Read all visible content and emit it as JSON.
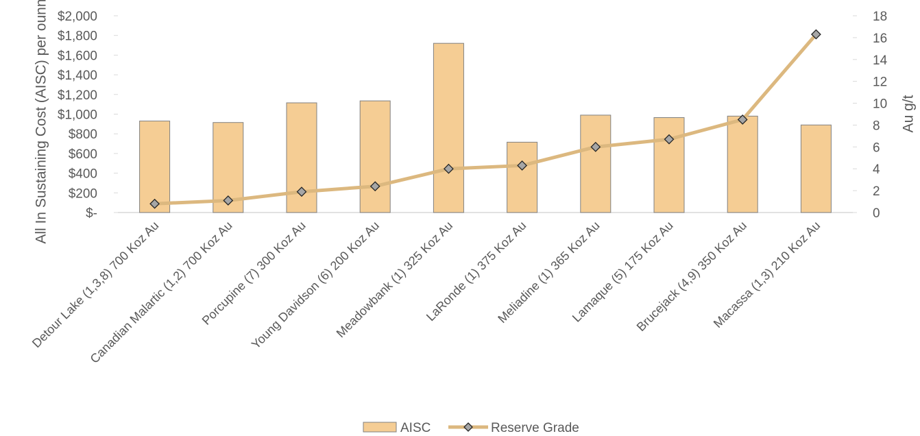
{
  "chart_data": {
    "type": "bar",
    "title": "",
    "categories": [
      "Detour Lake (1,3,8) 700 Koz Au",
      "Canadian Malartic (1,2) 700 Koz Au",
      "Porcupine (7) 300 Koz Au",
      "Young Davidson (6) 200 Koz Au",
      "Meadowbank (1) 325 Koz Au",
      "LaRonde  (1) 375 Koz Au",
      "Meliadine (1) 365 Koz Au",
      "Lamaque (5) 175 Koz Au",
      "Brucejack (4,9) 350 Koz Au",
      "Macassa (1,3) 210 Koz Au"
    ],
    "series": [
      {
        "name": "AISC",
        "type": "bar",
        "axis": "left",
        "color": "#f5cd94",
        "values": [
          930,
          915,
          1115,
          1135,
          1720,
          715,
          990,
          965,
          980,
          890
        ]
      },
      {
        "name": "Reserve Grade",
        "type": "line",
        "axis": "right",
        "color": "#dcb87f",
        "marker_color": "#a6a6a6",
        "values": [
          0.8,
          1.1,
          1.9,
          2.4,
          4.0,
          4.3,
          6.0,
          6.7,
          8.5,
          16.3
        ]
      }
    ],
    "ylabel": "All In Sustaining Cost (AISC) per ounnce",
    "y2label": "Au g/t",
    "ylim": [
      0,
      2000
    ],
    "y2lim": [
      0,
      18
    ],
    "yticks": [
      "$-",
      "$200",
      "$400",
      "$600",
      "$800",
      "$1,000",
      "$1,200",
      "$1,400",
      "$1,600",
      "$1,800",
      "$2,000"
    ],
    "y2ticks": [
      "0",
      "2",
      "4",
      "6",
      "8",
      "10",
      "12",
      "14",
      "16",
      "18"
    ],
    "legend": "bottom",
    "grid": false
  }
}
